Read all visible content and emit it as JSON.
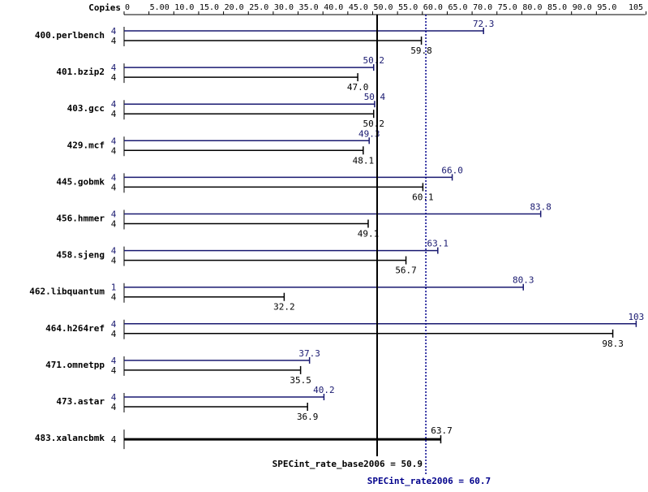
{
  "chart_data": {
    "type": "bar",
    "orientation": "horizontal",
    "copies_label": "Copies",
    "xlim": [
      0,
      105
    ],
    "ticks": [
      {
        "value": 0,
        "label": "0"
      },
      {
        "value": 5,
        "label": "5.00"
      },
      {
        "value": 10,
        "label": "10.0"
      },
      {
        "value": 15,
        "label": "15.0"
      },
      {
        "value": 20,
        "label": "20.0"
      },
      {
        "value": 25,
        "label": "25.0"
      },
      {
        "value": 30,
        "label": "30.0"
      },
      {
        "value": 35,
        "label": "35.0"
      },
      {
        "value": 40,
        "label": "40.0"
      },
      {
        "value": 45,
        "label": "45.0"
      },
      {
        "value": 50,
        "label": "50.0"
      },
      {
        "value": 55,
        "label": "55.0"
      },
      {
        "value": 60,
        "label": "60.0"
      },
      {
        "value": 65,
        "label": "65.0"
      },
      {
        "value": 70,
        "label": "70.0"
      },
      {
        "value": 75,
        "label": "75.0"
      },
      {
        "value": 80,
        "label": "80.0"
      },
      {
        "value": 85,
        "label": "85.0"
      },
      {
        "value": 90,
        "label": "90.0"
      },
      {
        "value": 95,
        "label": "95.0"
      },
      {
        "value": 105,
        "label": "105"
      }
    ],
    "benchmarks": [
      {
        "name": "400.perlbench",
        "peak_copies": "4",
        "peak": 72.3,
        "peak_label": "72.3",
        "base_copies": "4",
        "base": 59.8,
        "base_label": "59.8"
      },
      {
        "name": "401.bzip2",
        "peak_copies": "4",
        "peak": 50.2,
        "peak_label": "50.2",
        "base_copies": "4",
        "base": 47.0,
        "base_label": "47.0"
      },
      {
        "name": "403.gcc",
        "peak_copies": "4",
        "peak": 50.4,
        "peak_label": "50.4",
        "base_copies": "4",
        "base": 50.2,
        "base_label": "50.2"
      },
      {
        "name": "429.mcf",
        "peak_copies": "4",
        "peak": 49.3,
        "peak_label": "49.3",
        "base_copies": "4",
        "base": 48.1,
        "base_label": "48.1"
      },
      {
        "name": "445.gobmk",
        "peak_copies": "4",
        "peak": 66.0,
        "peak_label": "66.0",
        "base_copies": "4",
        "base": 60.1,
        "base_label": "60.1"
      },
      {
        "name": "456.hmmer",
        "peak_copies": "4",
        "peak": 83.8,
        "peak_label": "83.8",
        "base_copies": "4",
        "base": 49.1,
        "base_label": "49.1"
      },
      {
        "name": "458.sjeng",
        "peak_copies": "4",
        "peak": 63.1,
        "peak_label": "63.1",
        "base_copies": "4",
        "base": 56.7,
        "base_label": "56.7"
      },
      {
        "name": "462.libquantum",
        "peak_copies": "1",
        "peak": 80.3,
        "peak_label": "80.3",
        "base_copies": "4",
        "base": 32.2,
        "base_label": "32.2"
      },
      {
        "name": "464.h264ref",
        "peak_copies": "4",
        "peak": 103,
        "peak_label": "103",
        "base_copies": "4",
        "base": 98.3,
        "base_label": "98.3"
      },
      {
        "name": "471.omnetpp",
        "peak_copies": "4",
        "peak": 37.3,
        "peak_label": "37.3",
        "base_copies": "4",
        "base": 35.5,
        "base_label": "35.5"
      },
      {
        "name": "473.astar",
        "peak_copies": "4",
        "peak": 40.2,
        "peak_label": "40.2",
        "base_copies": "4",
        "base": 36.9,
        "base_label": "36.9"
      },
      {
        "name": "483.xalancbmk",
        "peak_copies": "",
        "peak": null,
        "peak_label": "",
        "base_copies": "4",
        "base": 63.7,
        "base_label": "63.7"
      }
    ],
    "base_summary": {
      "value": 50.9,
      "label": "SPECint_rate_base2006 = 50.9"
    },
    "peak_summary": {
      "value": 60.7,
      "label": "SPECint_rate2006 = 60.7"
    },
    "colors": {
      "base": "#000000",
      "peak": "#191970",
      "summary_peak": "#00008b"
    },
    "grid": false
  }
}
